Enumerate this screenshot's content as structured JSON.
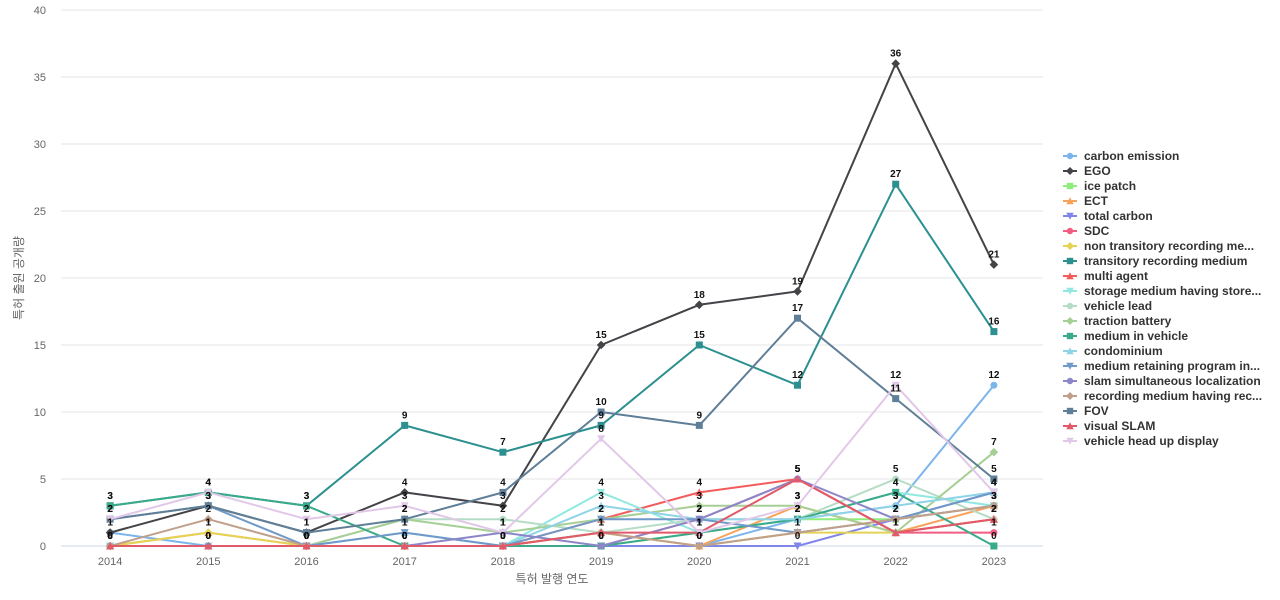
{
  "chart_data": {
    "type": "line",
    "title": "",
    "xlabel": "특허 발행 연도",
    "ylabel": "특허 출원 공개량",
    "ylim": [
      0,
      40
    ],
    "yticks": [
      0,
      5,
      10,
      15,
      20,
      25,
      30,
      35,
      40
    ],
    "x": [
      "2014",
      "2015",
      "2016",
      "2017",
      "2018",
      "2019",
      "2020",
      "2021",
      "2022",
      "2023"
    ],
    "grid": "horizontal",
    "legend_position": "right",
    "series": [
      {
        "name": "carbon emission",
        "color": "#7cb5ec",
        "marker": "circle",
        "values": [
          1,
          0,
          0,
          0,
          0,
          0,
          0,
          2,
          3,
          12
        ]
      },
      {
        "name": "EGO",
        "color": "#434348",
        "marker": "diamond",
        "values": [
          1,
          3,
          1,
          4,
          3,
          15,
          18,
          19,
          36,
          21
        ]
      },
      {
        "name": "ice patch",
        "color": "#90ed7d",
        "marker": "square",
        "values": [
          0,
          0,
          0,
          0,
          0,
          0,
          1,
          2,
          2,
          3
        ]
      },
      {
        "name": "ECT",
        "color": "#f7a35c",
        "marker": "triangle",
        "values": [
          0,
          1,
          0,
          0,
          0,
          1,
          0,
          3,
          1,
          3
        ]
      },
      {
        "name": "total carbon",
        "color": "#8085e9",
        "marker": "triangle-down",
        "values": [
          0,
          0,
          0,
          0,
          0,
          0,
          0,
          0,
          2,
          4
        ]
      },
      {
        "name": "SDC",
        "color": "#f15c80",
        "marker": "circle",
        "values": [
          0,
          0,
          0,
          0,
          0,
          0,
          2,
          5,
          1,
          1
        ]
      },
      {
        "name": "non transitory recording me...",
        "color": "#e4d354",
        "marker": "diamond",
        "values": [
          0,
          1,
          0,
          0,
          0,
          1,
          0,
          1,
          1,
          2
        ]
      },
      {
        "name": "transitory recording medium",
        "color": "#2b908f",
        "marker": "square",
        "values": [
          3,
          4,
          3,
          9,
          7,
          9,
          15,
          12,
          27,
          16
        ]
      },
      {
        "name": "multi agent",
        "color": "#f45b5b",
        "marker": "triangle",
        "values": [
          0,
          0,
          0,
          0,
          0,
          2,
          4,
          5,
          1,
          2
        ]
      },
      {
        "name": "storage medium having store...",
        "color": "#91e8e1",
        "marker": "triangle-down",
        "values": [
          0,
          0,
          0,
          0,
          0,
          4,
          1,
          2,
          4,
          3
        ]
      },
      {
        "name": "vehicle lead",
        "color": "#b5dcc5",
        "marker": "circle",
        "values": [
          0,
          0,
          0,
          2,
          2,
          1,
          2,
          2,
          5,
          2
        ]
      },
      {
        "name": "traction battery",
        "color": "#a6cf96",
        "marker": "diamond",
        "values": [
          0,
          0,
          0,
          2,
          1,
          2,
          3,
          3,
          1,
          7
        ]
      },
      {
        "name": "medium in vehicle",
        "color": "#3aaa8a",
        "marker": "square",
        "values": [
          3,
          4,
          3,
          0,
          0,
          0,
          1,
          2,
          4,
          0
        ]
      },
      {
        "name": "condominium",
        "color": "#8fd3e8",
        "marker": "triangle",
        "values": [
          0,
          0,
          0,
          1,
          0,
          3,
          2,
          2,
          3,
          4
        ]
      },
      {
        "name": "medium retaining program in...",
        "color": "#7098c8",
        "marker": "triangle-down",
        "values": [
          2,
          3,
          0,
          1,
          0,
          2,
          2,
          1,
          2,
          4
        ]
      },
      {
        "name": "slam simultaneous localization",
        "color": "#8c86c8",
        "marker": "circle",
        "values": [
          0,
          0,
          0,
          0,
          1,
          0,
          2,
          5,
          2,
          3
        ]
      },
      {
        "name": "recording medium having rec...",
        "color": "#c0a08a",
        "marker": "diamond",
        "values": [
          0,
          2,
          0,
          0,
          0,
          1,
          0,
          1,
          2,
          3
        ]
      },
      {
        "name": "FOV",
        "color": "#5f7f98",
        "marker": "square",
        "values": [
          2,
          3,
          1,
          2,
          4,
          10,
          9,
          17,
          11,
          5
        ]
      },
      {
        "name": "visual SLAM",
        "color": "#e05a6a",
        "marker": "triangle",
        "values": [
          0,
          0,
          0,
          0,
          0,
          1,
          1,
          5,
          1,
          2
        ]
      },
      {
        "name": "vehicle head up display",
        "color": "#e2c8e8",
        "marker": "triangle-down",
        "values": [
          2,
          4,
          2,
          3,
          1,
          8,
          1,
          3,
          12,
          4
        ]
      }
    ]
  }
}
